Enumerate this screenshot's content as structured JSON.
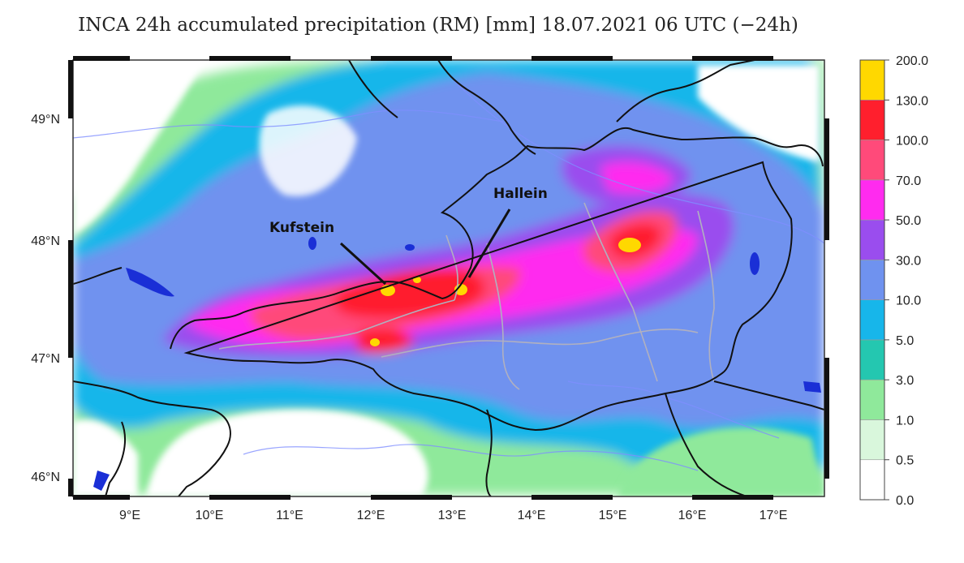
{
  "title": "INCA 24h accumulated precipitation (RM) [mm] 18.07.2021 06 UTC (−24h)",
  "axes": {
    "longitude_labels": [
      "9°E",
      "10°E",
      "11°E",
      "12°E",
      "13°E",
      "14°E",
      "15°E",
      "16°E",
      "17°E"
    ],
    "latitude_labels": [
      "49°N",
      "48°N",
      "47°N",
      "46°N"
    ]
  },
  "places": [
    {
      "name": "Kufstein"
    },
    {
      "name": "Hallein"
    }
  ],
  "legend": {
    "levels": [
      "0.0",
      "0.5",
      "1.0",
      "3.0",
      "5.0",
      "10.0",
      "30.0",
      "50.0",
      "70.0",
      "100.0",
      "130.0",
      "200.0"
    ],
    "colors": [
      "#ffffff",
      "#d9f7dc",
      "#8fe99b",
      "#24c7b0",
      "#17b6ea",
      "#6f92ef",
      "#9a4dee",
      "#ff2bef",
      "#ff4a7a",
      "#ff1f2d",
      "#ffd800"
    ]
  }
}
